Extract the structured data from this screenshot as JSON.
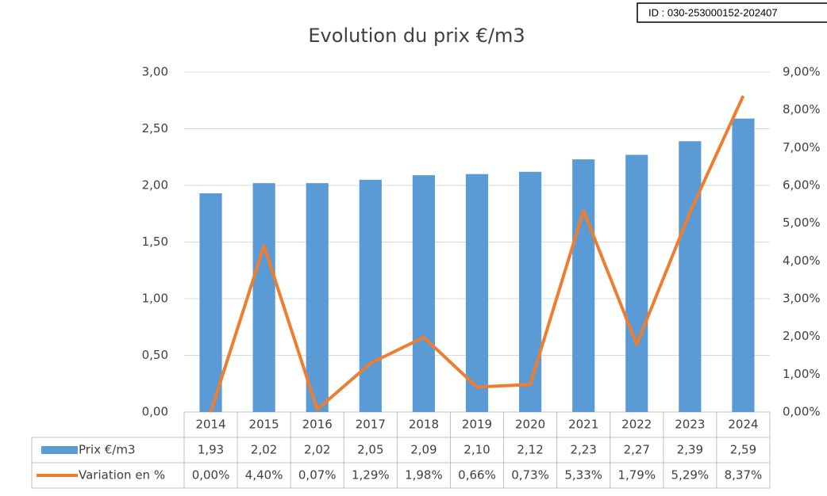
{
  "chart_data": {
    "type": "bar_line",
    "title": "Evolution du prix €/m3",
    "annotation": "ID : 030-253000152-202407",
    "categories": [
      "2014",
      "2015",
      "2016",
      "2017",
      "2018",
      "2019",
      "2020",
      "2021",
      "2022",
      "2023",
      "2024"
    ],
    "series": [
      {
        "name": "Prix €/m3",
        "type": "bar",
        "color": "#5b9bd5",
        "values": [
          1.93,
          2.02,
          2.02,
          2.05,
          2.09,
          2.1,
          2.12,
          2.23,
          2.27,
          2.39,
          2.59
        ],
        "value_labels": [
          "1,93",
          "2,02",
          "2,02",
          "2,05",
          "2,09",
          "2,10",
          "2,12",
          "2,23",
          "2,27",
          "2,39",
          "2,59"
        ]
      },
      {
        "name": "Variation en %",
        "type": "line",
        "axis": "y2",
        "color": "#ed7d31",
        "values": [
          0.0,
          4.4,
          0.07,
          1.29,
          1.98,
          0.66,
          0.73,
          5.33,
          1.79,
          5.29,
          8.37
        ],
        "value_labels": [
          "0,00%",
          "4,40%",
          "0,07%",
          "1,29%",
          "1,98%",
          "0,66%",
          "0,73%",
          "5,33%",
          "1,79%",
          "5,29%",
          "8,37%"
        ]
      }
    ],
    "ylim": [
      0,
      3
    ],
    "yticks": [
      {
        "value": 0,
        "label": "0,00"
      },
      {
        "value": 0.5,
        "label": "0,50"
      },
      {
        "value": 1,
        "label": "1,00"
      },
      {
        "value": 1.5,
        "label": "1,50"
      },
      {
        "value": 2,
        "label": "2,00"
      },
      {
        "value": 2.5,
        "label": "2,50"
      },
      {
        "value": 3,
        "label": "3,00"
      }
    ],
    "y2lim": [
      0,
      9
    ],
    "y2ticks": [
      {
        "value": 0,
        "label": "0,00%"
      },
      {
        "value": 1,
        "label": "1,00%"
      },
      {
        "value": 2,
        "label": "2,00%"
      },
      {
        "value": 3,
        "label": "3,00%"
      },
      {
        "value": 4,
        "label": "4,00%"
      },
      {
        "value": 5,
        "label": "5,00%"
      },
      {
        "value": 6,
        "label": "6,00%"
      },
      {
        "value": 7,
        "label": "7,00%"
      },
      {
        "value": 8,
        "label": "8,00%"
      },
      {
        "value": 9,
        "label": "9,00%"
      }
    ],
    "grid": true
  }
}
